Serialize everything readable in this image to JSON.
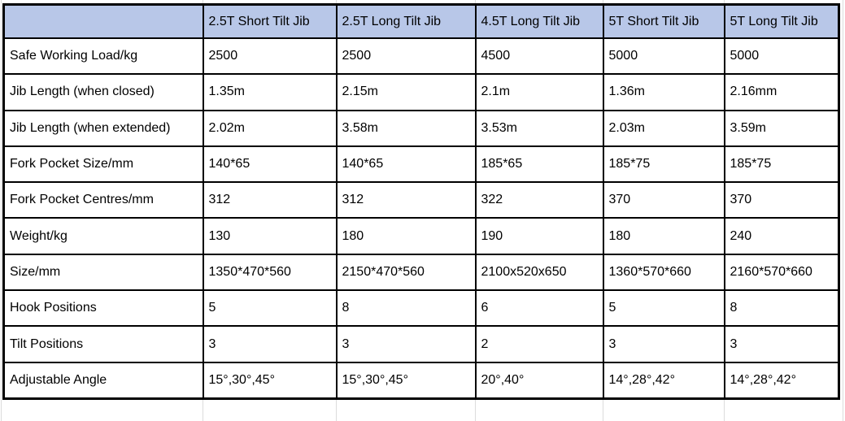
{
  "colors": {
    "header_bg": "#B8C7E8",
    "border": "#000000",
    "gridline": "#DCDCDC"
  },
  "table": {
    "columns": [
      "",
      "2.5T Short Tilt Jib",
      "2.5T Long Tilt Jib",
      "4.5T Long Tilt Jib",
      "5T Short Tilt Jib",
      "5T Long Tilt Jib"
    ],
    "rows": [
      {
        "label": "Safe Working Load/kg",
        "values": [
          "2500",
          "2500",
          "4500",
          "5000",
          "5000"
        ]
      },
      {
        "label": "Jib Length (when closed)",
        "values": [
          "1.35m",
          "2.15m",
          "2.1m",
          "1.36m",
          "2.16mm"
        ]
      },
      {
        "label": "Jib Length (when extended)",
        "values": [
          "2.02m",
          "3.58m",
          "3.53m",
          "2.03m",
          "3.59m"
        ]
      },
      {
        "label": "Fork Pocket Size/mm",
        "values": [
          "140*65",
          "140*65",
          "185*65",
          "185*75",
          "185*75"
        ]
      },
      {
        "label": "Fork Pocket Centres/mm",
        "values": [
          "312",
          "312",
          "322",
          "370",
          "370"
        ]
      },
      {
        "label": "Weight/kg",
        "values": [
          "130",
          "180",
          "190",
          "180",
          "240"
        ]
      },
      {
        "label": "Size/mm",
        "values": [
          "1350*470*560",
          "2150*470*560",
          "2100x520x650",
          "1360*570*660",
          "2160*570*660"
        ]
      },
      {
        "label": "Hook Positions",
        "values": [
          "5",
          "8",
          "6",
          "5",
          "8"
        ]
      },
      {
        "label": "Tilt Positions",
        "values": [
          "3",
          "3",
          "2",
          "3",
          "3"
        ]
      },
      {
        "label": "Adjustable Angle",
        "values": [
          "15°,30°,45°",
          "15°,30°,45°",
          "20°,40°",
          "14°,28°,42°",
          "14°,28°,42°"
        ]
      }
    ]
  }
}
